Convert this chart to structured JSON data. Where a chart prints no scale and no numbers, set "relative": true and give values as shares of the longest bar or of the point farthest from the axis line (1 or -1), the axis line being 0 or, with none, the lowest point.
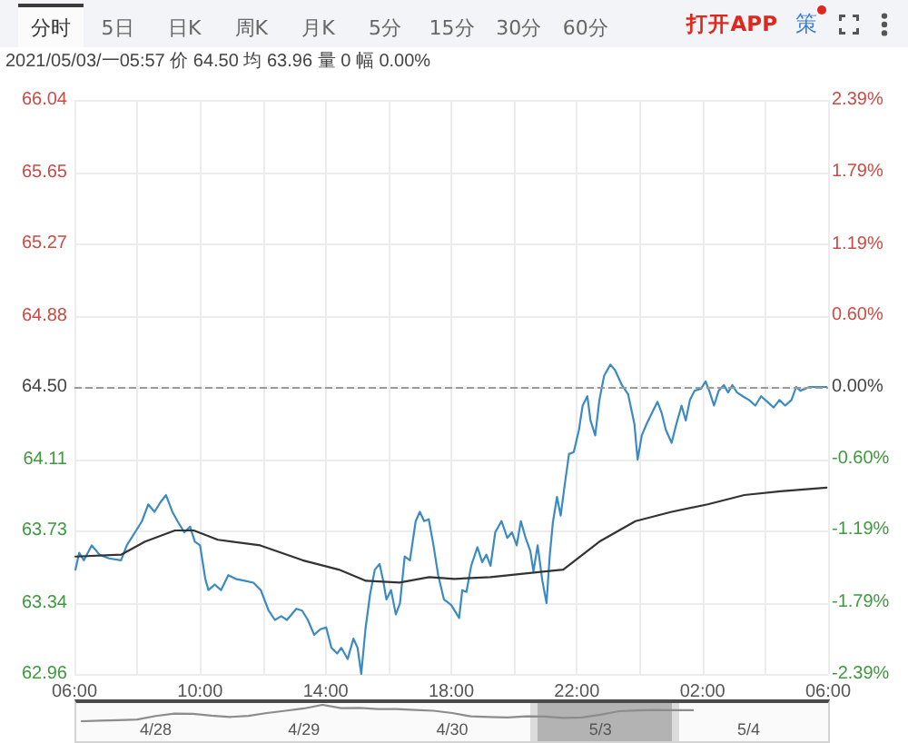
{
  "chart_data": [
    {
      "type": "line",
      "title": "2021/05/03/一05:57 价 64.50 均 63.96 量 0 幅 0.00%",
      "annotations": [
        "分时",
        "5日",
        "日K",
        "周K",
        "月K",
        "5分",
        "15分",
        "30分",
        "60分",
        "打开APP",
        "策"
      ],
      "xlim": [
        "2021-05-03T06:00",
        "2021-05-04T06:00"
      ],
      "xticks": [
        {
          "value": "2021-05-03T06:00",
          "label": "06:00"
        },
        {
          "value": "2021-05-03T08:00",
          "label": null
        },
        {
          "value": "2021-05-03T10:00",
          "label": "10:00"
        },
        {
          "value": "2021-05-03T12:00",
          "label": null
        },
        {
          "value": "2021-05-03T14:00",
          "label": "14:00"
        },
        {
          "value": "2021-05-03T16:00",
          "label": null
        },
        {
          "value": "2021-05-03T18:00",
          "label": "18:00"
        },
        {
          "value": "2021-05-03T20:00",
          "label": null
        },
        {
          "value": "2021-05-03T22:00",
          "label": "22:00"
        },
        {
          "value": "2021-05-04T00:00",
          "label": null
        },
        {
          "value": "2021-05-04T02:00",
          "label": "02:00"
        },
        {
          "value": "2021-05-04T04:00",
          "label": null
        },
        {
          "value": "2021-05-04T06:00",
          "label": "06:00"
        }
      ],
      "ylim": [
        62.96,
        66.04
      ],
      "yticks": [
        66.04,
        65.65,
        65.27,
        64.88,
        {
          "value": 64.5,
          "label": "64.50"
        },
        64.11,
        63.73,
        63.34,
        62.96
      ],
      "y2lim": [
        -2.39,
        2.39
      ],
      "y2ticks": [
        {
          "value": 2.39,
          "label": "2.39%"
        },
        {
          "value": 1.79,
          "label": "1.79%"
        },
        {
          "value": 1.19,
          "label": "1.19%"
        },
        {
          "value": 0.6,
          "label": "0.60%"
        },
        {
          "value": 0,
          "label": "0.00%"
        },
        {
          "value": -0.6,
          "label": "-0.60%"
        },
        {
          "value": -1.19,
          "label": "-1.19%"
        },
        {
          "value": -1.79,
          "label": "-1.79%"
        },
        {
          "value": -2.39,
          "label": "-2.39%"
        }
      ],
      "grid": true,
      "ref_lines": [
        {
          "axis": "y",
          "value": 64.5,
          "color": "#9a9a9a",
          "line_style": "dashed"
        }
      ],
      "series": [
        {
          "color": "#3b8bc2",
          "x": [
            "2021-05-03T06:02",
            "2021-05-03T06:09",
            "2021-05-03T06:18",
            "2021-05-03T06:33",
            "2021-05-03T06:48",
            "2021-05-03T07:06",
            "2021-05-03T07:29",
            "2021-05-03T07:40",
            "2021-05-03T07:58",
            "2021-05-03T08:09",
            "2021-05-03T08:21",
            "2021-05-03T08:33",
            "2021-05-03T08:44",
            "2021-05-03T08:55",
            "2021-05-03T09:07",
            "2021-05-03T09:19",
            "2021-05-03T09:30",
            "2021-05-03T09:41",
            "2021-05-03T09:50",
            "2021-05-03T10:00",
            "2021-05-03T10:10",
            "2021-05-03T10:16",
            "2021-05-03T10:28",
            "2021-05-03T10:40",
            "2021-05-03T10:54",
            "2021-05-03T11:08",
            "2021-05-03T11:25",
            "2021-05-03T11:42",
            "2021-05-03T11:56",
            "2021-05-03T12:11",
            "2021-05-03T12:23",
            "2021-05-03T12:35",
            "2021-05-03T12:46",
            "2021-05-03T13:04",
            "2021-05-03T13:15",
            "2021-05-03T13:26",
            "2021-05-03T13:38",
            "2021-05-03T13:50",
            "2021-05-03T14:01",
            "2021-05-03T14:11",
            "2021-05-03T14:22",
            "2021-05-03T14:30",
            "2021-05-03T14:42",
            "2021-05-03T14:53",
            "2021-05-03T15:01",
            "2021-05-03T15:08",
            "2021-05-03T15:16",
            "2021-05-03T15:25",
            "2021-05-03T15:34",
            "2021-05-03T15:43",
            "2021-05-03T15:50",
            "2021-05-03T15:56",
            "2021-05-03T16:05",
            "2021-05-03T16:14",
            "2021-05-03T16:22",
            "2021-05-03T16:31",
            "2021-05-03T16:41",
            "2021-05-03T16:52",
            "2021-05-03T17:00",
            "2021-05-03T17:08",
            "2021-05-03T17:17",
            "2021-05-03T17:26",
            "2021-05-03T17:35",
            "2021-05-03T17:46",
            "2021-05-03T18:00",
            "2021-05-03T18:15",
            "2021-05-03T18:21",
            "2021-05-03T18:29",
            "2021-05-03T18:38",
            "2021-05-03T18:50",
            "2021-05-03T18:59",
            "2021-05-03T19:07",
            "2021-05-03T19:15",
            "2021-05-03T19:24",
            "2021-05-03T19:36",
            "2021-05-03T19:47",
            "2021-05-03T19:56",
            "2021-05-03T20:05",
            "2021-05-03T20:13",
            "2021-05-03T20:22",
            "2021-05-03T20:31",
            "2021-05-03T20:37",
            "2021-05-03T20:45",
            "2021-05-03T20:54",
            "2021-05-03T21:02",
            "2021-05-03T21:08",
            "2021-05-03T21:14",
            "2021-05-03T21:22",
            "2021-05-03T21:29",
            "2021-05-03T21:37",
            "2021-05-03T21:45",
            "2021-05-03T21:54",
            "2021-05-03T22:04",
            "2021-05-03T22:11",
            "2021-05-03T22:20",
            "2021-05-03T22:26",
            "2021-05-03T22:35",
            "2021-05-03T22:43",
            "2021-05-03T22:52",
            "2021-05-03T23:04",
            "2021-05-03T23:13",
            "2021-05-03T23:26",
            "2021-05-03T23:38",
            "2021-05-03T23:50",
            "2021-05-03T23:56",
            "2021-05-04T00:04",
            "2021-05-04T00:13",
            "2021-05-04T00:25",
            "2021-05-04T00:34",
            "2021-05-04T00:42",
            "2021-05-04T00:50",
            "2021-05-04T01:01",
            "2021-05-04T01:10",
            "2021-05-04T01:20",
            "2021-05-04T01:28",
            "2021-05-04T01:36",
            "2021-05-04T01:45",
            "2021-05-04T01:57",
            "2021-05-04T02:06",
            "2021-05-04T02:14",
            "2021-05-04T02:22",
            "2021-05-04T02:31",
            "2021-05-04T02:41",
            "2021-05-04T02:49",
            "2021-05-04T02:57",
            "2021-05-04T03:06",
            "2021-05-04T03:17",
            "2021-05-04T03:29",
            "2021-05-04T03:41",
            "2021-05-04T03:52",
            "2021-05-04T04:04",
            "2021-05-04T04:16",
            "2021-05-04T04:27",
            "2021-05-04T04:38",
            "2021-05-04T04:50",
            "2021-05-04T04:59",
            "2021-05-04T05:07",
            "2021-05-04T05:25",
            "2021-05-04T05:57"
          ],
          "values": [
            63.52,
            63.61,
            63.57,
            63.65,
            63.6,
            63.58,
            63.57,
            63.65,
            63.73,
            63.78,
            63.87,
            63.83,
            63.88,
            63.92,
            63.83,
            63.77,
            63.72,
            63.75,
            63.67,
            63.65,
            63.47,
            63.41,
            63.44,
            63.41,
            63.49,
            63.47,
            63.46,
            63.45,
            63.41,
            63.3,
            63.25,
            63.27,
            63.25,
            63.31,
            63.3,
            63.25,
            63.17,
            63.2,
            63.21,
            63.1,
            63.07,
            63.1,
            63.04,
            63.15,
            63.1,
            62.96,
            63.2,
            63.39,
            63.52,
            63.55,
            63.46,
            63.36,
            63.41,
            63.28,
            63.34,
            63.59,
            63.57,
            63.78,
            63.83,
            63.78,
            63.79,
            63.65,
            63.49,
            63.36,
            63.33,
            63.26,
            63.41,
            63.4,
            63.54,
            63.64,
            63.56,
            63.6,
            63.54,
            63.72,
            63.78,
            63.69,
            63.72,
            63.65,
            63.78,
            63.69,
            63.62,
            63.51,
            63.65,
            63.46,
            63.34,
            63.59,
            63.77,
            63.91,
            63.81,
            63.98,
            64.14,
            64.15,
            64.27,
            64.4,
            64.45,
            64.32,
            64.24,
            64.43,
            64.56,
            64.62,
            64.59,
            64.51,
            64.46,
            64.3,
            64.11,
            64.24,
            64.3,
            64.37,
            64.42,
            64.36,
            64.27,
            64.2,
            64.3,
            64.4,
            64.32,
            64.43,
            64.48,
            64.49,
            64.53,
            64.47,
            64.4,
            64.48,
            64.51,
            64.47,
            64.51,
            64.47,
            64.45,
            64.43,
            64.4,
            64.45,
            64.42,
            64.39,
            64.43,
            64.4,
            64.43,
            64.5,
            64.48,
            64.5,
            64.5
          ]
        },
        {
          "color": "#333333",
          "x": [
            "2021-05-03T06:02",
            "2021-05-03T07:29",
            "2021-05-03T08:15",
            "2021-05-03T09:12",
            "2021-05-03T09:48",
            "2021-05-03T10:34",
            "2021-05-03T11:55",
            "2021-05-03T13:16",
            "2021-05-03T14:25",
            "2021-05-03T15:17",
            "2021-05-03T16:21",
            "2021-05-03T17:18",
            "2021-05-03T18:06",
            "2021-05-03T19:15",
            "2021-05-03T20:59",
            "2021-05-03T21:34",
            "2021-05-03T22:43",
            "2021-05-03T23:52",
            "2021-05-04T01:01",
            "2021-05-04T02:10",
            "2021-05-04T03:20",
            "2021-05-04T04:29",
            "2021-05-04T05:57"
          ],
          "values": [
            63.59,
            63.6,
            63.67,
            63.73,
            63.73,
            63.68,
            63.65,
            63.57,
            63.52,
            63.46,
            63.45,
            63.48,
            63.47,
            63.48,
            63.51,
            63.52,
            63.67,
            63.78,
            63.83,
            63.87,
            63.92,
            63.94,
            63.96
          ]
        }
      ]
    },
    {
      "type": "line",
      "relative": true,
      "color": "#8c8c8c",
      "categories": [
        null,
        null,
        null,
        null,
        "4/28",
        null,
        null,
        null,
        null,
        null,
        null,
        null,
        "4/29",
        null,
        null,
        null,
        null,
        null,
        null,
        null,
        "4/30",
        null,
        null,
        null,
        null,
        null,
        null,
        null,
        "5/3",
        null,
        null,
        null,
        null,
        null,
        null,
        null,
        "5/4",
        null,
        null,
        null,
        null
      ],
      "values": [
        0,
        0.03,
        0.06,
        0.1,
        0.32,
        0.47,
        0.45,
        0.34,
        0.26,
        0.33,
        0.5,
        0.64,
        0.78,
        1,
        0.8,
        0.81,
        0.74,
        0.74,
        0.69,
        0.64,
        0.5,
        0.3,
        0.26,
        0.23,
        0.3,
        0.28,
        0.2,
        0.23,
        0.4,
        0.61,
        0.66,
        0.69,
        0.67,
        0.67,
        null,
        null,
        null,
        null,
        null,
        null,
        null
      ]
    }
  ]
}
